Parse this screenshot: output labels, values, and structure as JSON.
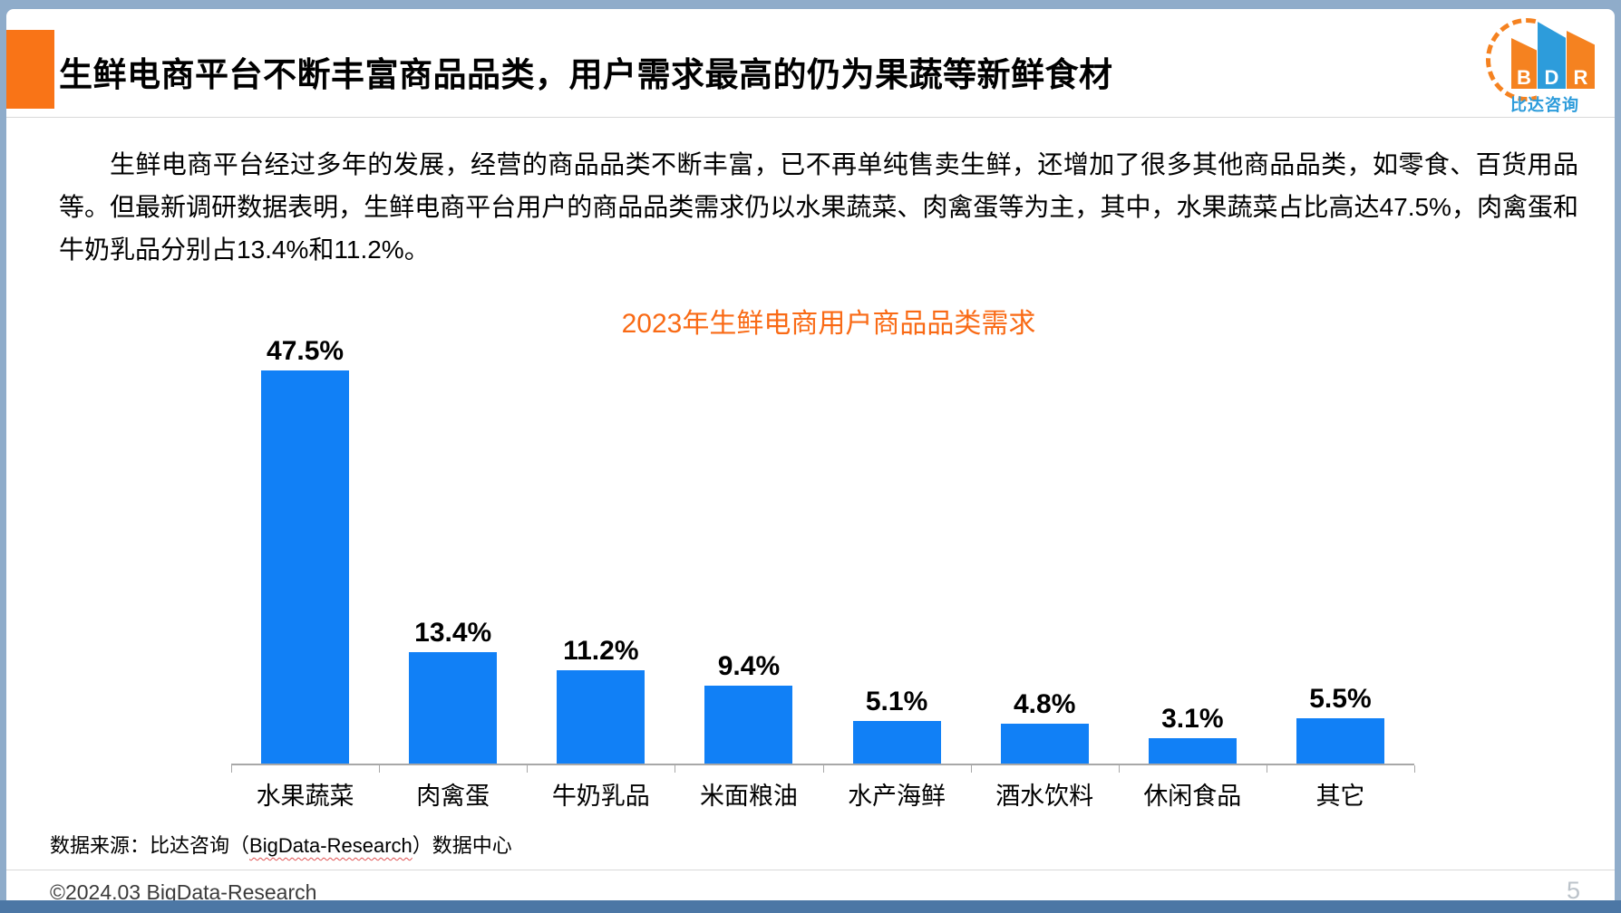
{
  "frame": {
    "border_color": "#8FACCA",
    "bottom_band_color": "#4C77A5"
  },
  "header": {
    "title": "生鲜电商平台不断丰富商品品类，用户需求最高的仍为果蔬等新鲜食材",
    "accent_color": "#F97417"
  },
  "logo": {
    "letters": [
      "B",
      "D",
      "R"
    ],
    "subtitle": "比达咨询",
    "orange": "#F58220",
    "blue": "#2D9CDB"
  },
  "body": {
    "paragraph": "生鲜电商平台经过多年的发展，经营的商品品类不断丰富，已不再单纯售卖生鲜，还增加了很多其他商品品类，如零食、百货用品等。但最新调研数据表明，生鲜电商平台用户的商品品类需求仍以水果蔬菜、肉禽蛋等为主，其中，水果蔬菜占比高达47.5%，肉禽蛋和牛奶乳品分别占13.4%和11.2%。"
  },
  "chart_data": {
    "type": "bar",
    "title": "2023年生鲜电商用户商品品类需求",
    "title_color": "#F96A15",
    "categories": [
      "水果蔬菜",
      "肉禽蛋",
      "牛奶乳品",
      "米面粮油",
      "水产海鲜",
      "酒水饮料",
      "休闲食品",
      "其它"
    ],
    "values": [
      47.5,
      13.4,
      11.2,
      9.4,
      5.1,
      4.8,
      3.1,
      5.5
    ],
    "labels": [
      "47.5%",
      "13.4%",
      "11.2%",
      "9.4%",
      "5.1%",
      "4.8%",
      "3.1%",
      "5.5%"
    ],
    "bar_color": "#1180F6",
    "xlabel": "",
    "ylabel": "",
    "ylim": [
      0,
      50
    ],
    "grid": false,
    "legend": null
  },
  "source": {
    "prefix": "数据来源：比达咨询（",
    "underlined": "BigData-Research",
    "suffix": "）数据中心"
  },
  "footer": {
    "copyright": "©2024.03 BigData-Research",
    "page_number": "5"
  }
}
